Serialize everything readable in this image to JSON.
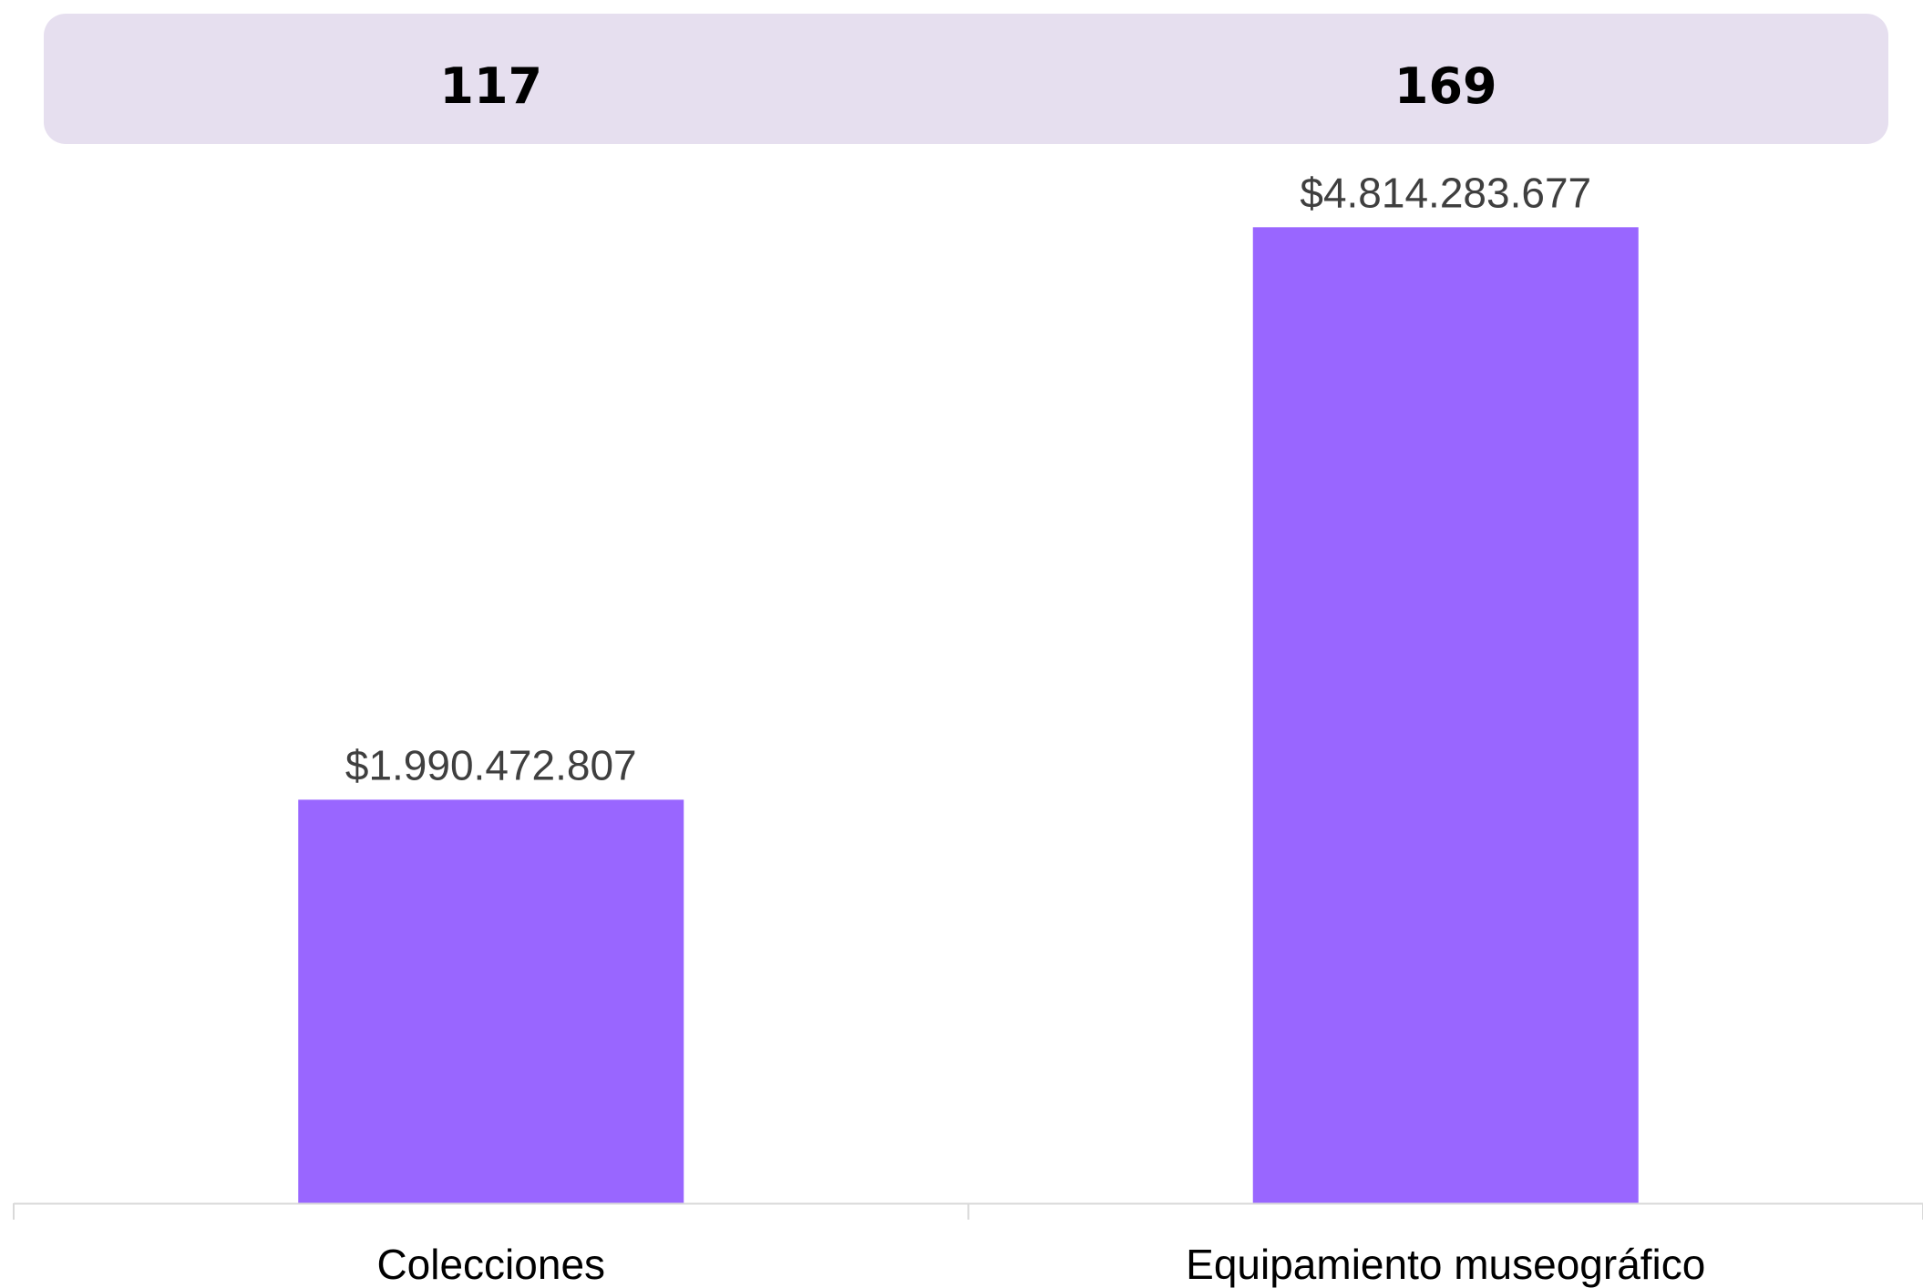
{
  "counts": [
    {
      "value": "117"
    },
    {
      "value": "169"
    }
  ],
  "chart_data": {
    "type": "bar",
    "categories": [
      "Colecciones",
      "Equipamiento museográfico"
    ],
    "values": [
      1990472807,
      4814283677
    ],
    "data_labels": [
      "$1.990.472.807",
      "$4.814.283.677"
    ],
    "ylim": [
      0,
      5000000000
    ],
    "grid": false,
    "legend": "none",
    "colors": {
      "bar": "#9966ff",
      "label": "#3f3f3f",
      "axis": "#d9d9d9",
      "band": "#e6dfef"
    }
  }
}
